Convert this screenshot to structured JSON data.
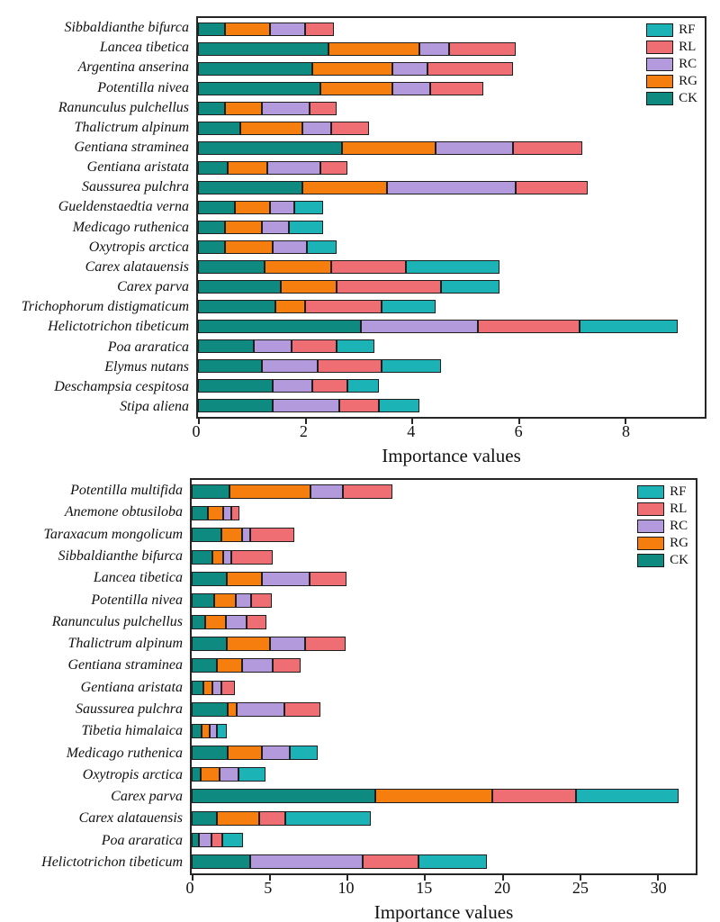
{
  "colors": {
    "RF": "#1cb3b7",
    "RL": "#ee6e73",
    "RC": "#b29add",
    "RG": "#f57e0f",
    "CK": "#0e8a80",
    "frame": "#262626"
  },
  "legend_order": [
    "RF",
    "RL",
    "RC",
    "RG",
    "CK"
  ],
  "chart_data": [
    {
      "type": "bar",
      "orientation": "horizontal",
      "stacked": true,
      "title": "",
      "xlabel": "Importance values",
      "ylabel": "",
      "xlim": [
        0,
        9.5
      ],
      "xticks": [
        0,
        2,
        4,
        6,
        8
      ],
      "grid": false,
      "legend_position": "top-right",
      "categories": [
        "Sibbaldianthe bifurca",
        "Lancea tibetica",
        "Argentina anserina",
        "Potentilla nivea",
        "Ranunculus pulchellus",
        "Thalictrum alpinum",
        "Gentiana straminea",
        "Gentiana aristata",
        "Saussurea pulchra",
        "Gueldenstaedtia verna",
        "Medicago ruthenica",
        "Oxytropis arctica",
        "Carex alatauensis",
        "Carex parva",
        "Trichophorum distigmaticum",
        "Helictotrichon tibeticum",
        "Poa araratica",
        "Elymus nutans",
        "Deschampsia cespitosa",
        "Stipa aliena"
      ],
      "series": [
        {
          "name": "CK",
          "values": [
            0.5,
            2.45,
            2.15,
            2.3,
            0.5,
            0.8,
            2.7,
            0.55,
            1.95,
            0.7,
            0.5,
            0.5,
            1.25,
            1.55,
            1.45,
            3.05,
            1.05,
            1.2,
            1.4,
            1.4
          ]
        },
        {
          "name": "RG",
          "values": [
            0.85,
            1.7,
            1.5,
            1.35,
            0.7,
            1.15,
            1.75,
            0.75,
            1.6,
            0.65,
            0.7,
            0.9,
            1.25,
            1.05,
            0.55,
            0,
            0,
            0,
            0,
            0
          ]
        },
        {
          "name": "RC",
          "values": [
            0.65,
            0.55,
            0.65,
            0.7,
            0.9,
            0.55,
            1.45,
            1.0,
            2.4,
            0.45,
            0.5,
            0.65,
            0,
            0,
            0,
            2.2,
            0.7,
            1.05,
            0.75,
            1.25
          ]
        },
        {
          "name": "RL",
          "values": [
            0.55,
            1.25,
            1.6,
            1.0,
            0.5,
            0.7,
            1.3,
            0.5,
            1.35,
            0,
            0,
            0,
            1.4,
            1.95,
            1.45,
            1.9,
            0.85,
            1.2,
            0.65,
            0.75
          ]
        },
        {
          "name": "RF",
          "values": [
            0,
            0,
            0,
            0,
            0,
            0,
            0,
            0,
            0,
            0.55,
            0.65,
            0.55,
            1.75,
            1.1,
            1.0,
            1.85,
            0.7,
            1.1,
            0.6,
            0.75
          ]
        }
      ]
    },
    {
      "type": "bar",
      "orientation": "horizontal",
      "stacked": true,
      "title": "",
      "xlabel": "Importance values",
      "ylabel": "",
      "xlim": [
        0,
        32.5
      ],
      "xticks": [
        0,
        5,
        10,
        15,
        20,
        25,
        30
      ],
      "grid": false,
      "legend_position": "top-right",
      "categories": [
        "Potentilla multifida",
        "Anemone obtusiloba",
        "Taraxacum mongolicum",
        "Sibbaldianthe bifurca",
        "Lancea tibetica",
        "Potentilla nivea",
        "Ranunculus pulchellus",
        "Thalictrum alpinum",
        "Gentiana straminea",
        "Gentiana aristata",
        "Saussurea pulchra",
        "Tibetia himalaica",
        "Medicago ruthenica",
        "Oxytropis arctica",
        "Carex parva",
        "Carex alatauensis",
        "Poa araratica",
        "Helictotrichon tibeticum"
      ],
      "series": [
        {
          "name": "CK",
          "values": [
            2.45,
            1.05,
            1.9,
            1.35,
            2.25,
            1.45,
            0.85,
            2.25,
            1.6,
            0.75,
            2.35,
            0.65,
            2.35,
            0.6,
            11.85,
            1.6,
            0.45,
            3.8
          ]
        },
        {
          "name": "RG",
          "values": [
            5.2,
            1.0,
            1.35,
            0.7,
            2.3,
            1.4,
            1.35,
            2.8,
            1.65,
            0.6,
            0.55,
            0.5,
            2.2,
            1.2,
            7.55,
            2.75,
            0,
            0
          ]
        },
        {
          "name": "RC",
          "values": [
            2.1,
            0.5,
            0.55,
            0.5,
            3.05,
            1.0,
            1.35,
            2.25,
            2.0,
            0.55,
            3.1,
            0.5,
            1.75,
            1.2,
            0,
            0,
            0.85,
            7.25
          ]
        },
        {
          "name": "RL",
          "values": [
            3.2,
            0.5,
            2.8,
            2.65,
            2.4,
            1.3,
            1.25,
            2.65,
            1.75,
            0.9,
            2.3,
            0,
            0,
            0,
            5.4,
            1.7,
            0.7,
            3.6
          ]
        },
        {
          "name": "RF",
          "values": [
            0,
            0,
            0,
            0,
            0,
            0,
            0,
            0,
            0,
            0,
            0,
            0.6,
            1.85,
            1.75,
            6.6,
            5.5,
            1.3,
            4.4
          ]
        }
      ]
    }
  ]
}
